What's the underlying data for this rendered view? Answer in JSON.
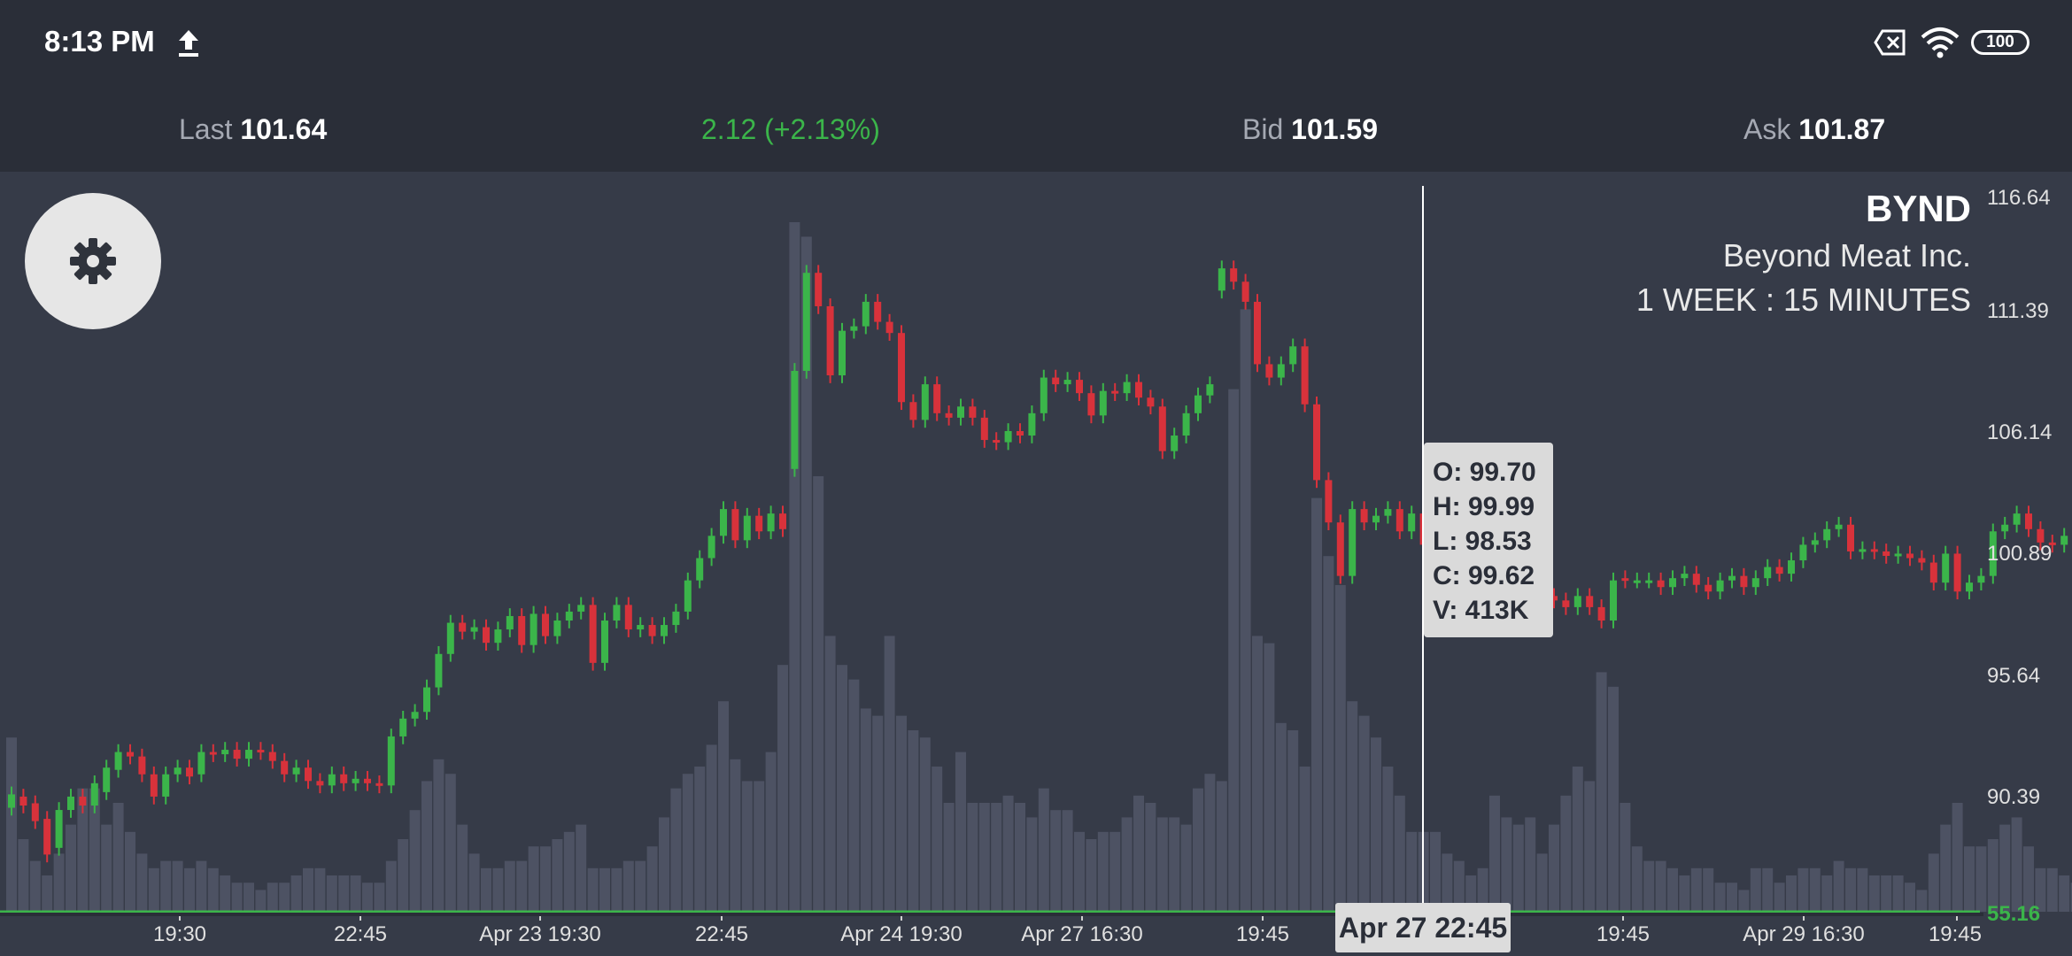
{
  "status_bar": {
    "time": "8:13 PM",
    "icons": [
      "upload-icon",
      "sim-disabled-icon",
      "wifi-icon",
      "battery-icon"
    ],
    "battery": "100"
  },
  "quote": {
    "last_label": "Last",
    "last_value": "101.64",
    "change": "2.12 (+2.13%)",
    "bid_label": "Bid",
    "bid_value": "101.59",
    "ask_label": "Ask",
    "ask_value": "101.87"
  },
  "chart_header": {
    "symbol": "BYND",
    "company": "Beyond Meat Inc.",
    "period": "1 WEEK : 15 MINUTES"
  },
  "settings_icon": "gear-icon",
  "tooltip": {
    "open": "O: 99.70",
    "high": "H: 99.99",
    "low": "L: 98.53",
    "close": "C: 99.62",
    "volume": "V: 413K"
  },
  "crosshair_date": "Apr 27 22:45",
  "colors": {
    "up": "#3bb54a",
    "down": "#d8323b",
    "volume": "#4d5263",
    "background": "#363b48",
    "bar": "#2a2e38"
  },
  "chart_data": {
    "type": "candlestick",
    "y_ticks": [
      "116.64",
      "111.39",
      "106.14",
      "100.89",
      "95.64",
      "90.39",
      "55.16"
    ],
    "x_ticks": [
      "19:30",
      "22:45",
      "Apr 23 19:30",
      "22:45",
      "Apr 24 19:30",
      "Apr 27 16:30",
      "19:45",
      "19:45",
      "Apr 29 16:30",
      "19:45"
    ],
    "price_range": [
      89.5,
      117.3
    ],
    "last_price_line": "55.16",
    "candles": [
      [
        89.4,
        90.0
      ],
      [
        89.9,
        89.5
      ],
      [
        89.6,
        88.8
      ],
      [
        88.9,
        87.3
      ],
      [
        87.6,
        89.3
      ],
      [
        89.3,
        89.9
      ],
      [
        89.9,
        89.5
      ],
      [
        89.5,
        90.5
      ],
      [
        90.1,
        91.2
      ],
      [
        91.1,
        91.9
      ],
      [
        91.9,
        91.7
      ],
      [
        91.7,
        90.9
      ],
      [
        90.9,
        89.9
      ],
      [
        89.9,
        90.9
      ],
      [
        90.9,
        91.2
      ],
      [
        91.2,
        90.8
      ],
      [
        90.9,
        91.9
      ],
      [
        91.9,
        91.8
      ],
      [
        91.8,
        92.0
      ],
      [
        92.0,
        91.6
      ],
      [
        91.6,
        92.0
      ],
      [
        92.0,
        91.9
      ],
      [
        91.9,
        91.5
      ],
      [
        91.5,
        90.9
      ],
      [
        90.9,
        91.2
      ],
      [
        91.2,
        90.6
      ],
      [
        90.6,
        90.4
      ],
      [
        90.4,
        90.9
      ],
      [
        90.9,
        90.5
      ],
      [
        90.5,
        90.7
      ],
      [
        90.7,
        90.5
      ],
      [
        90.5,
        90.4
      ],
      [
        90.4,
        92.6
      ],
      [
        92.6,
        93.4
      ],
      [
        93.4,
        93.7
      ],
      [
        93.7,
        94.8
      ],
      [
        94.8,
        96.3
      ],
      [
        96.3,
        97.7
      ],
      [
        97.7,
        97.3
      ],
      [
        97.3,
        97.5
      ],
      [
        97.5,
        96.8
      ],
      [
        96.8,
        97.4
      ],
      [
        97.4,
        98.0
      ],
      [
        98.0,
        96.7
      ],
      [
        96.7,
        98.1
      ],
      [
        98.1,
        97.1
      ],
      [
        97.1,
        97.8
      ],
      [
        97.8,
        98.2
      ],
      [
        98.2,
        98.5
      ],
      [
        98.5,
        95.9
      ],
      [
        95.9,
        97.8
      ],
      [
        97.8,
        98.5
      ],
      [
        98.5,
        97.4
      ],
      [
        97.4,
        97.6
      ],
      [
        97.6,
        97.1
      ],
      [
        97.1,
        97.6
      ],
      [
        97.6,
        98.2
      ],
      [
        98.2,
        99.6
      ],
      [
        99.6,
        100.6
      ],
      [
        100.6,
        101.6
      ],
      [
        101.6,
        102.8
      ],
      [
        102.8,
        101.4
      ],
      [
        101.4,
        102.5
      ],
      [
        102.5,
        101.8
      ],
      [
        101.8,
        102.6
      ],
      [
        102.6,
        101.9
      ],
      [
        104.6,
        109.0
      ],
      [
        109.0,
        113.4
      ],
      [
        113.4,
        111.9
      ],
      [
        111.9,
        108.8
      ],
      [
        108.8,
        110.8
      ],
      [
        110.8,
        111.0
      ],
      [
        111.0,
        112.1
      ],
      [
        112.1,
        111.2
      ],
      [
        111.2,
        110.7
      ],
      [
        110.7,
        107.6
      ],
      [
        107.6,
        106.8
      ],
      [
        106.8,
        108.4
      ],
      [
        108.4,
        107.1
      ],
      [
        107.1,
        106.9
      ],
      [
        106.9,
        107.4
      ],
      [
        107.4,
        106.9
      ],
      [
        106.9,
        105.9
      ],
      [
        105.9,
        105.8
      ],
      [
        105.8,
        106.3
      ],
      [
        106.3,
        106.1
      ],
      [
        106.1,
        107.1
      ],
      [
        107.1,
        108.7
      ],
      [
        108.7,
        108.4
      ],
      [
        108.4,
        108.6
      ],
      [
        108.6,
        108.0
      ],
      [
        108.0,
        107.0
      ],
      [
        107.0,
        108.1
      ],
      [
        108.1,
        108.0
      ],
      [
        108.0,
        108.5
      ],
      [
        108.5,
        107.8
      ],
      [
        107.8,
        107.4
      ],
      [
        107.4,
        105.4
      ],
      [
        105.4,
        106.1
      ],
      [
        106.1,
        107.1
      ],
      [
        107.1,
        107.9
      ],
      [
        107.9,
        108.4
      ],
      [
        112.6,
        113.6
      ],
      [
        113.6,
        113.0
      ],
      [
        113.0,
        112.1
      ],
      [
        112.1,
        109.3
      ],
      [
        109.3,
        108.7
      ],
      [
        108.7,
        109.3
      ],
      [
        109.3,
        110.1
      ],
      [
        110.1,
        107.5
      ],
      [
        107.5,
        104.1
      ],
      [
        104.1,
        102.2
      ],
      [
        102.2,
        99.8
      ],
      [
        99.8,
        102.8
      ],
      [
        102.8,
        102.2
      ],
      [
        102.2,
        102.5
      ],
      [
        102.5,
        102.8
      ],
      [
        102.8,
        101.8
      ],
      [
        101.8,
        102.6
      ],
      [
        102.6,
        101.2
      ],
      [
        101.2,
        100.6
      ],
      [
        100.6,
        100.9
      ],
      [
        100.9,
        100.3
      ],
      [
        100.3,
        100.1
      ],
      [
        100.1,
        100.7
      ],
      [
        100.7,
        100.3
      ],
      [
        100.3,
        100.1
      ],
      [
        100.1,
        99.3
      ],
      [
        99.3,
        98.2
      ],
      [
        98.2,
        98.9
      ],
      [
        98.9,
        98.7
      ],
      [
        98.7,
        98.4
      ],
      [
        98.4,
        98.9
      ],
      [
        98.9,
        98.4
      ],
      [
        98.4,
        97.8
      ],
      [
        97.8,
        99.6
      ],
      [
        99.7,
        99.6
      ],
      [
        99.6,
        99.6
      ],
      [
        99.6,
        99.6
      ],
      [
        99.6,
        99.3
      ],
      [
        99.3,
        99.7
      ],
      [
        99.7,
        99.9
      ],
      [
        99.9,
        99.4
      ],
      [
        99.4,
        99.1
      ],
      [
        99.1,
        99.6
      ],
      [
        99.6,
        99.8
      ],
      [
        99.8,
        99.3
      ],
      [
        99.3,
        99.7
      ],
      [
        99.7,
        100.2
      ],
      [
        100.2,
        99.9
      ],
      [
        99.9,
        100.5
      ],
      [
        100.5,
        101.2
      ],
      [
        101.2,
        101.4
      ],
      [
        101.4,
        101.9
      ],
      [
        101.9,
        102.1
      ],
      [
        102.1,
        100.9
      ],
      [
        100.9,
        101.0
      ],
      [
        101.0,
        100.9
      ],
      [
        100.9,
        100.7
      ],
      [
        100.7,
        100.8
      ],
      [
        100.8,
        100.6
      ],
      [
        100.6,
        100.4
      ],
      [
        100.4,
        99.5
      ],
      [
        99.5,
        100.8
      ],
      [
        100.8,
        99.1
      ],
      [
        99.1,
        99.5
      ],
      [
        99.5,
        99.8
      ],
      [
        99.8,
        101.8
      ],
      [
        101.8,
        102.1
      ],
      [
        102.1,
        102.6
      ],
      [
        102.6,
        101.9
      ],
      [
        101.9,
        101.3
      ],
      [
        101.3,
        101.2
      ],
      [
        101.2,
        101.6
      ],
      [
        101.6,
        102.3
      ],
      [
        102.3,
        102.1
      ],
      [
        102.1,
        101.4
      ],
      [
        101.4,
        101.3
      ]
    ],
    "volume_levels": [
      0.24,
      0.1,
      0.07,
      0.05,
      0.08,
      0.12,
      0.17,
      0.17,
      0.12,
      0.15,
      0.11,
      0.08,
      0.06,
      0.07,
      0.07,
      0.06,
      0.07,
      0.06,
      0.05,
      0.04,
      0.04,
      0.03,
      0.04,
      0.04,
      0.05,
      0.06,
      0.06,
      0.05,
      0.05,
      0.05,
      0.04,
      0.04,
      0.07,
      0.1,
      0.14,
      0.18,
      0.21,
      0.19,
      0.12,
      0.08,
      0.06,
      0.06,
      0.07,
      0.07,
      0.09,
      0.09,
      0.1,
      0.11,
      0.12,
      0.06,
      0.06,
      0.06,
      0.07,
      0.07,
      0.09,
      0.13,
      0.17,
      0.19,
      0.2,
      0.23,
      0.29,
      0.21,
      0.18,
      0.18,
      0.22,
      0.34,
      0.95,
      0.93,
      0.6,
      0.38,
      0.34,
      0.32,
      0.28,
      0.27,
      0.38,
      0.27,
      0.25,
      0.24,
      0.2,
      0.15,
      0.22,
      0.15,
      0.15,
      0.15,
      0.16,
      0.15,
      0.13,
      0.17,
      0.14,
      0.14,
      0.11,
      0.1,
      0.11,
      0.11,
      0.13,
      0.16,
      0.15,
      0.13,
      0.13,
      0.12,
      0.17,
      0.19,
      0.18,
      0.72,
      0.83,
      0.38,
      0.37,
      0.26,
      0.25,
      0.2,
      0.57,
      0.49,
      0.45,
      0.29,
      0.27,
      0.24,
      0.2,
      0.16,
      0.11,
      0.11,
      0.11,
      0.08,
      0.07,
      0.05,
      0.06,
      0.16,
      0.13,
      0.12,
      0.13,
      0.08,
      0.12,
      0.16,
      0.2,
      0.18,
      0.33,
      0.31,
      0.15,
      0.09,
      0.07,
      0.07,
      0.06,
      0.05,
      0.06,
      0.06,
      0.04,
      0.04,
      0.03,
      0.06,
      0.06,
      0.04,
      0.05,
      0.06,
      0.06,
      0.05,
      0.07,
      0.06,
      0.06,
      0.05,
      0.05,
      0.05,
      0.04,
      0.03,
      0.08,
      0.12,
      0.15,
      0.09,
      0.09,
      0.1,
      0.12,
      0.13,
      0.09,
      0.06,
      0.06,
      0.05,
      0.04,
      0.03,
      0.04,
      0.04
    ]
  }
}
